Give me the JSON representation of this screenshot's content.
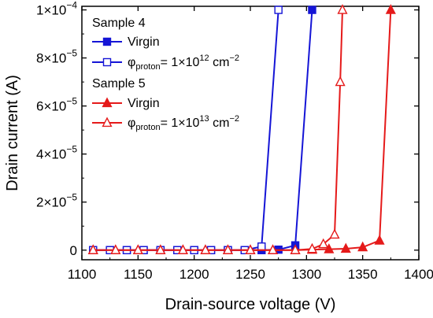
{
  "chart_data": {
    "type": "line",
    "xlabel": "Drain-source voltage (V)",
    "ylabel": "Drain current (A)",
    "xlim": [
      1100,
      1400
    ],
    "ylim": [
      -4e-06,
      0.0001015
    ],
    "xticks": [
      1100,
      1150,
      1200,
      1250,
      1300,
      1350,
      1400
    ],
    "yticks": [
      {
        "value": 0,
        "mant": "0",
        "exp": ""
      },
      {
        "value": 2e-05,
        "mant": "2×10",
        "exp": "−5"
      },
      {
        "value": 4e-05,
        "mant": "4×10",
        "exp": "−5"
      },
      {
        "value": 6e-05,
        "mant": "6×10",
        "exp": "−5"
      },
      {
        "value": 8e-05,
        "mant": "8×10",
        "exp": "−5"
      },
      {
        "value": 0.0001,
        "mant": "1×10",
        "exp": "−4"
      }
    ],
    "legend_placement": "top-left",
    "groups": [
      {
        "title": "Sample 4"
      },
      {
        "title": "Sample 5"
      }
    ],
    "series": [
      {
        "group": 0,
        "label": "Virgin",
        "color": "#1515d6",
        "marker": "square",
        "filled": true,
        "x": [
          1110,
          1125,
          1140,
          1155,
          1170,
          1185,
          1200,
          1215,
          1230,
          1245,
          1260,
          1275,
          1290,
          1305
        ],
        "y": [
          0,
          0,
          0,
          0,
          0,
          0,
          0,
          0,
          0,
          0,
          0,
          2e-07,
          2e-06,
          0.0001
        ]
      },
      {
        "group": 0,
        "label_prefix": "φ",
        "label_sub": "proton",
        "label_value": "= 1×10",
        "label_exp": "12",
        "label_unit": " cm",
        "label_unit_exp": "−2",
        "color": "#1515d6",
        "marker": "square",
        "filled": false,
        "x": [
          1110,
          1125,
          1140,
          1155,
          1170,
          1185,
          1200,
          1215,
          1230,
          1245,
          1260,
          1275
        ],
        "y": [
          0,
          0,
          0,
          0,
          0,
          0,
          0,
          0,
          0,
          0,
          1.5e-06,
          0.0001
        ]
      },
      {
        "group": 1,
        "label": "Virgin",
        "color": "#e51a1a",
        "marker": "triangle",
        "filled": true,
        "x": [
          1110,
          1130,
          1150,
          1170,
          1190,
          1210,
          1230,
          1250,
          1270,
          1290,
          1305,
          1320,
          1335,
          1350,
          1365,
          1375
        ],
        "y": [
          0,
          0,
          0,
          0,
          0,
          0,
          0,
          0,
          0,
          0,
          2e-07,
          4e-07,
          6e-07,
          1.2e-06,
          4e-06,
          0.0001
        ]
      },
      {
        "group": 1,
        "label_prefix": "φ",
        "label_sub": "proton",
        "label_value": "= 1×10",
        "label_exp": "13",
        "label_unit": " cm",
        "label_unit_exp": "−2",
        "color": "#e51a1a",
        "marker": "triangle",
        "filled": false,
        "x": [
          1110,
          1130,
          1150,
          1170,
          1190,
          1210,
          1230,
          1250,
          1270,
          1290,
          1305,
          1315,
          1325,
          1330,
          1332
        ],
        "y": [
          0,
          0,
          0,
          0,
          0,
          0,
          0,
          0,
          0,
          0,
          5e-07,
          2.5e-06,
          6.5e-06,
          7e-05,
          0.0001
        ]
      }
    ]
  }
}
